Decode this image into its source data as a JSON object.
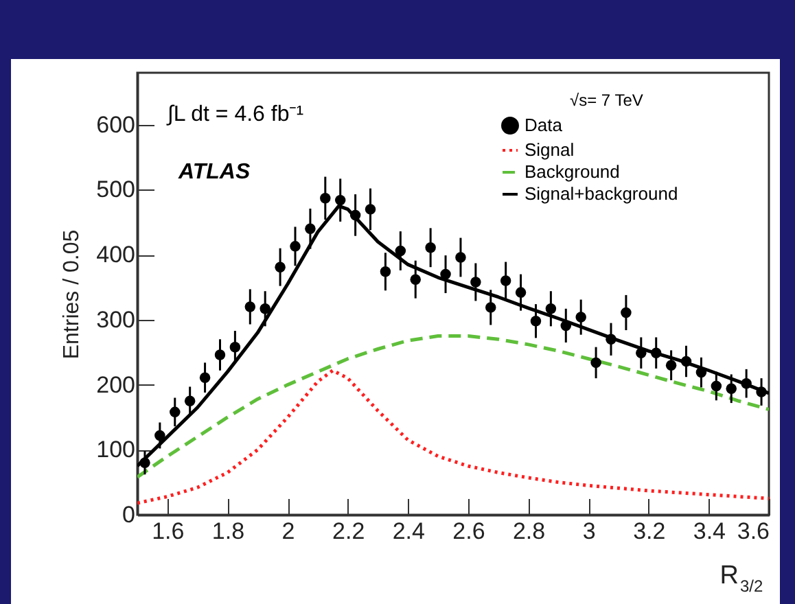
{
  "chart_data": {
    "type": "scatter",
    "xlabel": "R$_{3/2}$",
    "ylabel": "Entries / 0.05",
    "annotations": [
      "∫L dt = 4.6 fb⁻¹",
      "ATLAS",
      "√s= 7 TeV"
    ],
    "x": [
      1.525,
      1.575,
      1.625,
      1.675,
      1.725,
      1.775,
      1.825,
      1.875,
      1.925,
      1.975,
      2.025,
      2.075,
      2.125,
      2.175,
      2.225,
      2.275,
      2.325,
      2.375,
      2.425,
      2.475,
      2.525,
      2.575,
      2.625,
      2.675,
      2.725,
      2.775,
      2.825,
      2.875,
      2.925,
      2.975,
      3.025,
      3.075,
      3.125,
      3.175,
      3.225,
      3.275,
      3.325,
      3.375,
      3.425,
      3.475,
      3.525,
      3.575
    ],
    "series": [
      {
        "name": "Data",
        "color": "#000000",
        "marker": "circle",
        "values": [
          80,
          122,
          158,
          175,
          211,
          246,
          258,
          320,
          317,
          381,
          413,
          440,
          487,
          484,
          461,
          470,
          374,
          406,
          362,
          411,
          370,
          396,
          358,
          319,
          360,
          342,
          298,
          317,
          291,
          304,
          234,
          270,
          311,
          249,
          249,
          230,
          236,
          219,
          198,
          194,
          202,
          189
        ],
        "errors": [
          18,
          20,
          22,
          22,
          23,
          24,
          25,
          27,
          27,
          29,
          30,
          31,
          33,
          33,
          32,
          32,
          29,
          30,
          29,
          30,
          29,
          30,
          29,
          27,
          29,
          28,
          26,
          27,
          26,
          27,
          24,
          25,
          27,
          24,
          24,
          23,
          24,
          23,
          22,
          22,
          22,
          21
        ]
      },
      {
        "name": "Signal",
        "type": "line",
        "color": "#ff1f1f",
        "line_style": "dotted",
        "x": [
          1.5,
          1.6,
          1.7,
          1.8,
          1.9,
          2.0,
          2.1,
          2.15,
          2.2,
          2.3,
          2.4,
          2.5,
          2.6,
          2.7,
          2.8,
          2.9,
          3.0,
          3.1,
          3.2,
          3.3,
          3.4,
          3.5,
          3.6
        ],
        "values": [
          18,
          28,
          42,
          65,
          100,
          150,
          205,
          222,
          210,
          160,
          115,
          90,
          75,
          65,
          57,
          50,
          45,
          41,
          37,
          34,
          31,
          28,
          25
        ]
      },
      {
        "name": "Background",
        "type": "line",
        "color": "#5fbf3a",
        "line_style": "dashed",
        "x": [
          1.5,
          1.6,
          1.7,
          1.8,
          1.9,
          2.0,
          2.1,
          2.2,
          2.3,
          2.4,
          2.5,
          2.6,
          2.7,
          2.8,
          2.9,
          3.0,
          3.1,
          3.2,
          3.3,
          3.4,
          3.5,
          3.6
        ],
        "values": [
          58,
          90,
          120,
          150,
          178,
          200,
          220,
          240,
          255,
          268,
          275,
          275,
          270,
          262,
          252,
          240,
          228,
          215,
          202,
          190,
          175,
          162
        ]
      },
      {
        "name": "Signal+background",
        "type": "line",
        "color": "#000000",
        "line_style": "solid",
        "x": [
          1.5,
          1.6,
          1.7,
          1.8,
          1.9,
          2.0,
          2.1,
          2.17,
          2.2,
          2.3,
          2.4,
          2.5,
          2.6,
          2.7,
          2.8,
          2.9,
          3.0,
          3.1,
          3.2,
          3.3,
          3.4,
          3.5,
          3.6
        ],
        "values": [
          75,
          120,
          165,
          220,
          280,
          355,
          435,
          475,
          470,
          420,
          385,
          365,
          350,
          335,
          318,
          302,
          285,
          268,
          252,
          238,
          222,
          205,
          187
        ]
      }
    ],
    "xlim": [
      1.5,
      3.6
    ],
    "xticks": [
      1.6,
      1.8,
      {
        "value": 2,
        "label": "2"
      },
      2.2,
      2.4,
      2.6,
      2.8,
      {
        "value": 3,
        "label": "3"
      },
      3.2,
      3.4,
      3.6
    ],
    "ylim": [
      0,
      680
    ],
    "yticks": [
      0,
      100,
      200,
      300,
      400,
      500,
      600
    ],
    "legend": "top right",
    "grid": false
  }
}
